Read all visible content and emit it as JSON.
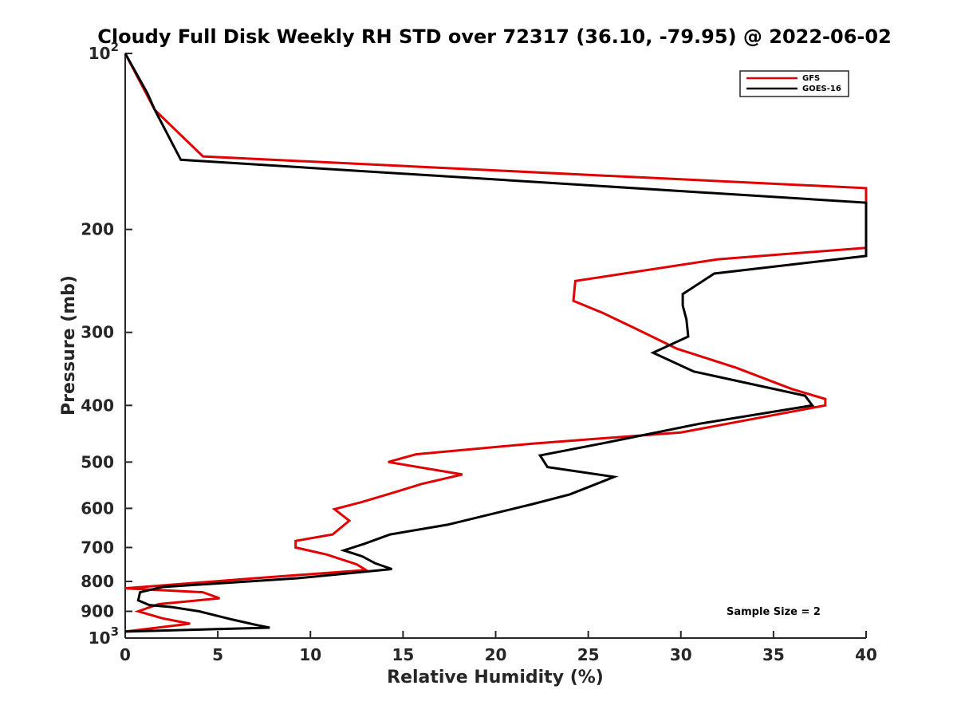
{
  "chart_data": {
    "type": "line",
    "title": "Cloudy Full Disk Weekly RH STD over 72317 (36.10, -79.95) @ 2022-06-02",
    "xlabel": "Relative Humidity (%)",
    "ylabel": "Pressure (mb)",
    "xlim": [
      0,
      40
    ],
    "ylim": [
      100,
      1000
    ],
    "yscale": "log",
    "y_reversed": true,
    "grid": false,
    "legend_position": "top-right",
    "annotation": "Sample Size = 2",
    "x_ticks": [
      "0",
      "5",
      "10",
      "15",
      "20",
      "25",
      "30",
      "35",
      "40"
    ],
    "y_ticks": [
      {
        "value": 100,
        "label": "10",
        "sup": "2"
      },
      {
        "value": 200,
        "label": "200"
      },
      {
        "value": 300,
        "label": "300"
      },
      {
        "value": 400,
        "label": "400"
      },
      {
        "value": 500,
        "label": "500"
      },
      {
        "value": 600,
        "label": "600"
      },
      {
        "value": 700,
        "label": "700"
      },
      {
        "value": 800,
        "label": "800"
      },
      {
        "value": 900,
        "label": "900"
      },
      {
        "value": 1000,
        "label": "10",
        "sup": "3"
      }
    ],
    "series": [
      {
        "name": "GFS",
        "color": "#e00000",
        "points": [
          [
            0,
            100
          ],
          [
            1.6,
            125
          ],
          [
            4.2,
            150
          ],
          [
            40,
            170
          ],
          [
            40,
            215
          ],
          [
            32,
            225
          ],
          [
            24.3,
            245
          ],
          [
            24.2,
            265
          ],
          [
            25.8,
            278
          ],
          [
            27.5,
            295
          ],
          [
            29.8,
            320
          ],
          [
            33,
            345
          ],
          [
            36,
            375
          ],
          [
            37.8,
            390
          ],
          [
            37.8,
            400
          ],
          [
            30,
            445
          ],
          [
            22,
            465
          ],
          [
            15.7,
            485
          ],
          [
            14.2,
            500
          ],
          [
            18.2,
            525
          ],
          [
            16,
            545
          ],
          [
            14.8,
            560
          ],
          [
            12.8,
            585
          ],
          [
            11.3,
            602
          ],
          [
            12.1,
            630
          ],
          [
            11.2,
            665
          ],
          [
            9.2,
            682
          ],
          [
            9.2,
            700
          ],
          [
            10.9,
            720
          ],
          [
            12.5,
            748
          ],
          [
            13,
            765
          ],
          [
            7,
            790
          ],
          [
            0,
            822
          ],
          [
            4.2,
            835
          ],
          [
            5.1,
            855
          ],
          [
            1.8,
            875
          ],
          [
            0.7,
            900
          ],
          [
            2,
            925
          ],
          [
            3.5,
            945
          ],
          [
            0,
            975
          ]
        ]
      },
      {
        "name": "GOES-16",
        "color": "#000000",
        "points": [
          [
            0,
            100
          ],
          [
            1.2,
            117
          ],
          [
            1.6,
            125
          ],
          [
            3,
            152
          ],
          [
            40,
            180
          ],
          [
            40,
            222
          ],
          [
            31.8,
            238
          ],
          [
            30.1,
            258
          ],
          [
            30.1,
            270
          ],
          [
            30.3,
            285
          ],
          [
            30.4,
            305
          ],
          [
            28.5,
            325
          ],
          [
            30.7,
            350
          ],
          [
            36.7,
            385
          ],
          [
            37.1,
            400
          ],
          [
            31,
            430
          ],
          [
            25.7,
            465
          ],
          [
            22.4,
            487
          ],
          [
            22.8,
            510
          ],
          [
            26.4,
            530
          ],
          [
            25,
            552
          ],
          [
            24,
            568
          ],
          [
            22,
            590
          ],
          [
            17.4,
            640
          ],
          [
            14.3,
            665
          ],
          [
            12.9,
            690
          ],
          [
            11.8,
            708
          ],
          [
            12.8,
            725
          ],
          [
            13.5,
            745
          ],
          [
            14.4,
            762
          ],
          [
            9.3,
            790
          ],
          [
            2,
            818
          ],
          [
            0.8,
            835
          ],
          [
            0.7,
            862
          ],
          [
            1.3,
            878
          ],
          [
            2.5,
            885
          ],
          [
            4,
            900
          ],
          [
            5.8,
            930
          ],
          [
            7.1,
            950
          ],
          [
            7.8,
            960
          ],
          [
            0,
            975
          ]
        ]
      }
    ]
  }
}
